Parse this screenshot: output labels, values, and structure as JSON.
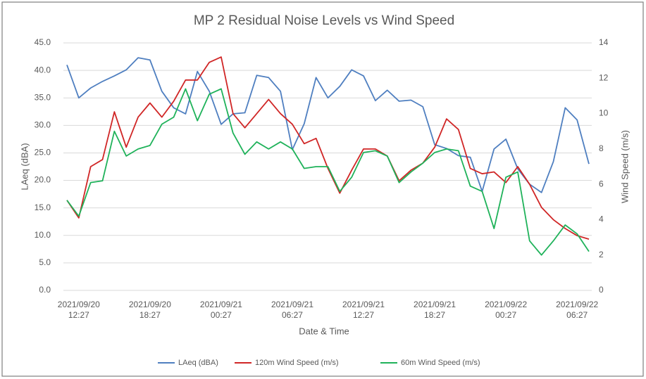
{
  "chart_data": {
    "type": "line",
    "title": "MP 2 Residual Noise Levels vs Wind Speed",
    "x_label": "Date & Time",
    "y_label": "LAeq (dBA)",
    "y2_label": "Wind Speed (m/s)",
    "categories": [
      null,
      "2021/09/20\n12:27",
      null,
      null,
      null,
      null,
      null,
      "2021/09/20\n18:27",
      null,
      null,
      null,
      null,
      null,
      "2021/09/21\n00:27",
      null,
      null,
      null,
      null,
      null,
      "2021/09/21\n06:27",
      null,
      null,
      null,
      null,
      null,
      "2021/09/21\n12:27",
      null,
      null,
      null,
      null,
      null,
      "2021/09/21\n18:27",
      null,
      null,
      null,
      null,
      null,
      "2021/09/22\n00:27",
      null,
      null,
      null,
      null,
      null,
      "2021/09/22\n06:27",
      null
    ],
    "ylim": [
      0,
      45
    ],
    "yticks": [
      {
        "value": 0,
        "label": "0.0"
      },
      {
        "value": 5,
        "label": "5.0"
      },
      {
        "value": 10,
        "label": "10.0"
      },
      {
        "value": 15,
        "label": "15.0"
      },
      {
        "value": 20,
        "label": "20.0"
      },
      {
        "value": 25,
        "label": "25.0"
      },
      {
        "value": 30,
        "label": "30.0"
      },
      {
        "value": 35,
        "label": "35.0"
      },
      {
        "value": 40,
        "label": "40.0"
      },
      {
        "value": 45,
        "label": "45.0"
      }
    ],
    "y2lim": [
      0,
      14
    ],
    "y2ticks": [
      0,
      2,
      4,
      6,
      8,
      10,
      12,
      14
    ],
    "grid": true,
    "legend": "bottom",
    "series": [
      {
        "name": "LAeq (dBA)",
        "color": "#4f7fc0",
        "values": [
          41.0,
          35.0,
          36.8,
          38.0,
          39.0,
          40.1,
          42.3,
          41.9,
          36.2,
          33.2,
          32.1,
          39.8,
          36.2,
          30.2,
          32.1,
          32.3,
          39.1,
          38.7,
          36.2,
          25.6,
          30.3,
          38.7,
          35.0,
          37.1,
          40.1,
          39.0,
          34.5,
          36.4,
          34.4,
          34.6,
          33.4,
          26.5,
          25.8,
          24.5,
          24.2,
          18.0,
          25.7,
          27.5,
          22.1,
          19.3,
          17.8,
          23.4,
          33.2,
          31.0,
          23.0
        ]
      },
      {
        "name": "120m Wind Speed (m/s)",
        "color": "#d02626",
        "axis": "y2",
        "values": [
          5.1,
          4.1,
          7.0,
          7.4,
          10.1,
          8.1,
          9.8,
          10.6,
          9.8,
          10.7,
          11.9,
          11.9,
          12.9,
          13.2,
          10.0,
          9.2,
          10.0,
          10.8,
          10.0,
          9.4,
          8.3,
          8.6,
          6.9,
          5.5,
          6.8,
          8.0,
          8.0,
          7.6,
          6.2,
          6.8,
          7.2,
          8.1,
          9.7,
          9.1,
          6.9,
          6.6,
          6.7,
          6.1,
          7.0,
          6.0,
          4.7,
          4.0,
          3.5,
          3.1,
          2.9
        ]
      },
      {
        "name": "60m Wind Speed (m/s)",
        "color": "#1fb25a",
        "axis": "y2",
        "values": [
          5.1,
          4.2,
          6.1,
          6.2,
          9.0,
          7.6,
          8.0,
          8.2,
          9.4,
          9.8,
          11.4,
          9.6,
          11.1,
          11.4,
          8.9,
          7.7,
          8.4,
          8.0,
          8.4,
          8.0,
          6.9,
          7.0,
          7.0,
          5.6,
          6.4,
          7.8,
          7.9,
          7.6,
          6.1,
          6.7,
          7.2,
          7.8,
          8.0,
          7.9,
          5.9,
          5.6,
          3.5,
          6.4,
          6.7,
          2.8,
          2.0,
          2.8,
          3.7,
          3.2,
          2.2
        ]
      }
    ]
  }
}
